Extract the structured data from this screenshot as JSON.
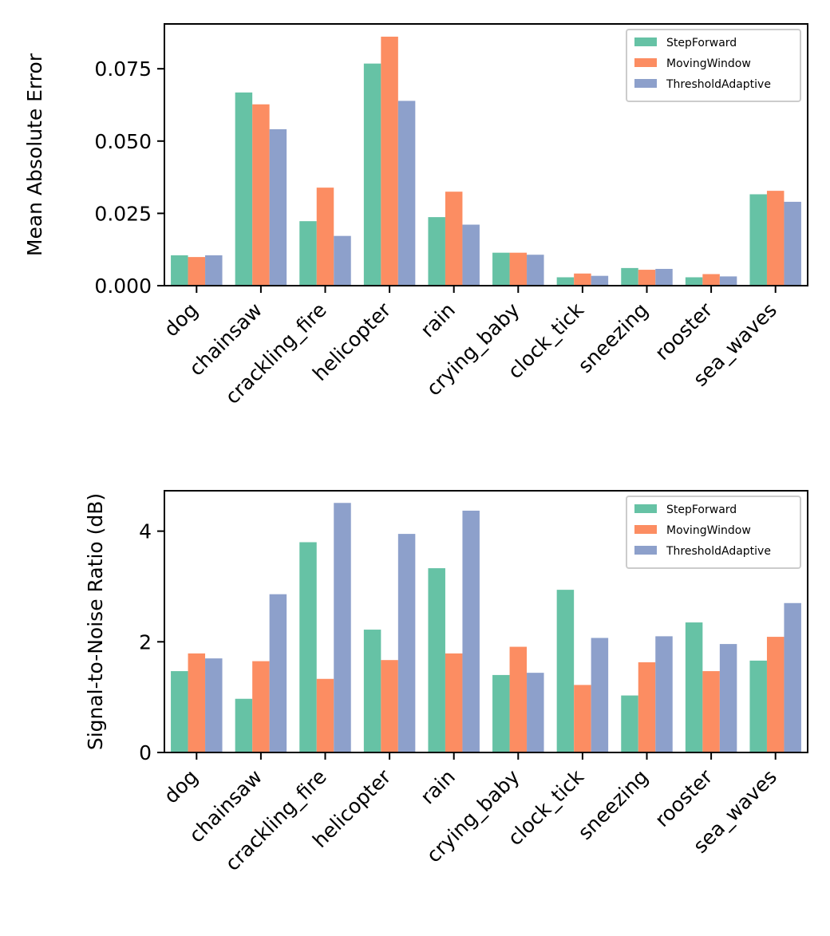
{
  "chart_data": [
    {
      "type": "bar",
      "title": "",
      "xlabel": "",
      "ylabel": "Mean Absolute Error",
      "ylim": [
        0,
        0.0905
      ],
      "yticks": [
        0.0,
        0.025,
        0.05,
        0.075
      ],
      "ytick_labels": [
        "0.000",
        "0.025",
        "0.050",
        "0.075"
      ],
      "categories": [
        "dog",
        "chainsaw",
        "crackling_fire",
        "helicopter",
        "rain",
        "crying_baby",
        "clock_tick",
        "sneezing",
        "rooster",
        "sea_waves"
      ],
      "series": [
        {
          "name": "StepForward",
          "color": "#66c2a5",
          "values": [
            0.0105,
            0.0668,
            0.0223,
            0.0768,
            0.0237,
            0.0114,
            0.0029,
            0.0061,
            0.0029,
            0.0316
          ]
        },
        {
          "name": "MovingWindow",
          "color": "#fc8d62",
          "values": [
            0.0099,
            0.0627,
            0.0339,
            0.0861,
            0.0325,
            0.0114,
            0.0042,
            0.0055,
            0.004,
            0.0328
          ]
        },
        {
          "name": "ThresholdAdaptive",
          "color": "#8da0cb",
          "values": [
            0.0105,
            0.0541,
            0.0172,
            0.0639,
            0.0211,
            0.0107,
            0.0034,
            0.0058,
            0.0032,
            0.029
          ]
        }
      ],
      "legend": "top-right"
    },
    {
      "type": "bar",
      "title": "",
      "xlabel": "",
      "ylabel": "Signal-to-Noise Ratio (dB)",
      "ylim": [
        0,
        4.73
      ],
      "yticks": [
        0,
        2,
        4
      ],
      "ytick_labels": [
        "0",
        "2",
        "4"
      ],
      "categories": [
        "dog",
        "chainsaw",
        "crackling_fire",
        "helicopter",
        "rain",
        "crying_baby",
        "clock_tick",
        "sneezing",
        "rooster",
        "sea_waves"
      ],
      "series": [
        {
          "name": "StepForward",
          "color": "#66c2a5",
          "values": [
            1.47,
            0.97,
            3.8,
            2.22,
            3.33,
            1.4,
            2.94,
            1.03,
            2.35,
            1.66
          ]
        },
        {
          "name": "MovingWindow",
          "color": "#fc8d62",
          "values": [
            1.79,
            1.65,
            1.33,
            1.67,
            1.79,
            1.91,
            1.22,
            1.63,
            1.47,
            2.09
          ]
        },
        {
          "name": "ThresholdAdaptive",
          "color": "#8da0cb",
          "values": [
            1.7,
            2.86,
            4.51,
            3.95,
            4.37,
            1.44,
            2.07,
            2.1,
            1.96,
            2.7
          ]
        }
      ],
      "legend": "top-right"
    }
  ]
}
